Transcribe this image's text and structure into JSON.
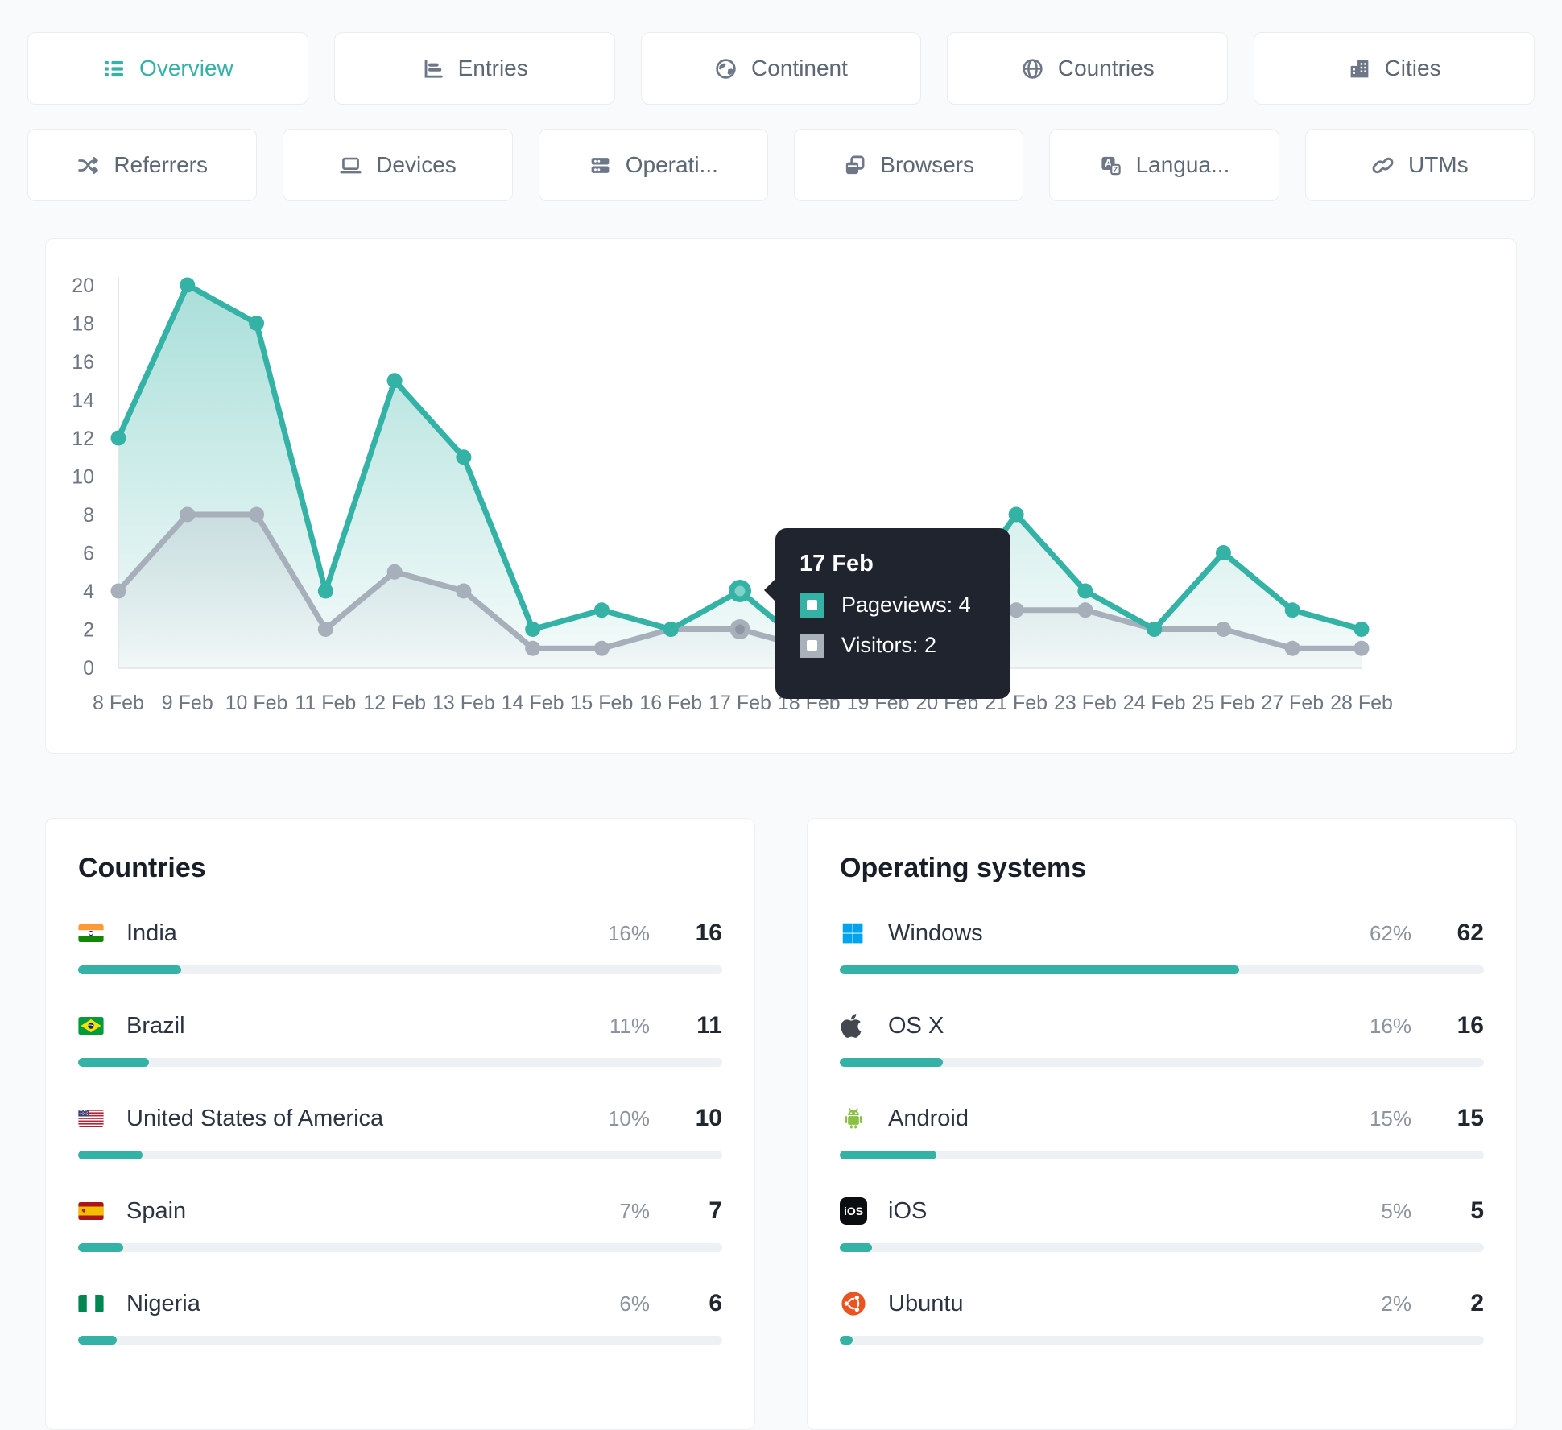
{
  "tabs": {
    "row1": [
      {
        "label": "Overview",
        "active": true
      },
      {
        "label": "Entries"
      },
      {
        "label": "Continent"
      },
      {
        "label": "Countries"
      },
      {
        "label": "Cities"
      }
    ],
    "row2": [
      {
        "label": "Referrers"
      },
      {
        "label": "Devices"
      },
      {
        "label": "Operati..."
      },
      {
        "label": "Browsers"
      },
      {
        "label": "Langua..."
      },
      {
        "label": "UTMs"
      }
    ]
  },
  "chart_data": {
    "type": "line",
    "categories": [
      "8 Feb",
      "9 Feb",
      "10 Feb",
      "11 Feb",
      "12 Feb",
      "13 Feb",
      "14 Feb",
      "15 Feb",
      "16 Feb",
      "17 Feb",
      "18 Feb",
      "19 Feb",
      "20 Feb",
      "21 Feb",
      "23 Feb",
      "24 Feb",
      "25 Feb",
      "27 Feb",
      "28 Feb"
    ],
    "series": [
      {
        "name": "Pageviews",
        "color": "#35b2a6",
        "values": [
          12,
          20,
          18,
          4,
          15,
          11,
          2,
          3,
          2,
          4,
          1,
          1,
          3,
          8,
          4,
          2,
          6,
          3,
          2
        ]
      },
      {
        "name": "Visitors",
        "color": "#a6afba",
        "values": [
          4,
          8,
          8,
          2,
          5,
          4,
          1,
          1,
          2,
          2,
          1,
          1,
          3,
          3,
          3,
          2,
          2,
          1,
          1
        ]
      }
    ],
    "ylim": [
      0,
      20
    ],
    "ytick_step": 2,
    "grid": false,
    "legend": "none",
    "tooltip": {
      "index": 9,
      "date": "17 Feb",
      "rows": [
        {
          "series": "Pageviews",
          "value": 4,
          "text": "Pageviews: 4"
        },
        {
          "series": "Visitors",
          "value": 2,
          "text": "Visitors: 2"
        }
      ]
    }
  },
  "panels": {
    "countries": {
      "title": "Countries",
      "rows": [
        {
          "name": "India",
          "pct": "16%",
          "pct_value": 16,
          "count": "16"
        },
        {
          "name": "Brazil",
          "pct": "11%",
          "pct_value": 11,
          "count": "11"
        },
        {
          "name": "United States of America",
          "pct": "10%",
          "pct_value": 10,
          "count": "10"
        },
        {
          "name": "Spain",
          "pct": "7%",
          "pct_value": 7,
          "count": "7"
        },
        {
          "name": "Nigeria",
          "pct": "6%",
          "pct_value": 6,
          "count": "6"
        }
      ]
    },
    "operating_systems": {
      "title": "Operating systems",
      "rows": [
        {
          "name": "Windows",
          "pct": "62%",
          "pct_value": 62,
          "count": "62"
        },
        {
          "name": "OS X",
          "pct": "16%",
          "pct_value": 16,
          "count": "16"
        },
        {
          "name": "Android",
          "pct": "15%",
          "pct_value": 15,
          "count": "15"
        },
        {
          "name": "iOS",
          "pct": "5%",
          "pct_value": 5,
          "count": "5",
          "icon_text": "iOS"
        },
        {
          "name": "Ubuntu",
          "pct": "2%",
          "pct_value": 2,
          "count": "2"
        }
      ]
    }
  },
  "colors": {
    "accent": "#35b2a6",
    "secondary_line": "#a6afba",
    "tooltip_bg": "#20242e",
    "windows_blue": "#00a3ee",
    "android_green": "#8ac043",
    "ubuntu_orange": "#e95420",
    "bar_track": "#eef1f4"
  }
}
